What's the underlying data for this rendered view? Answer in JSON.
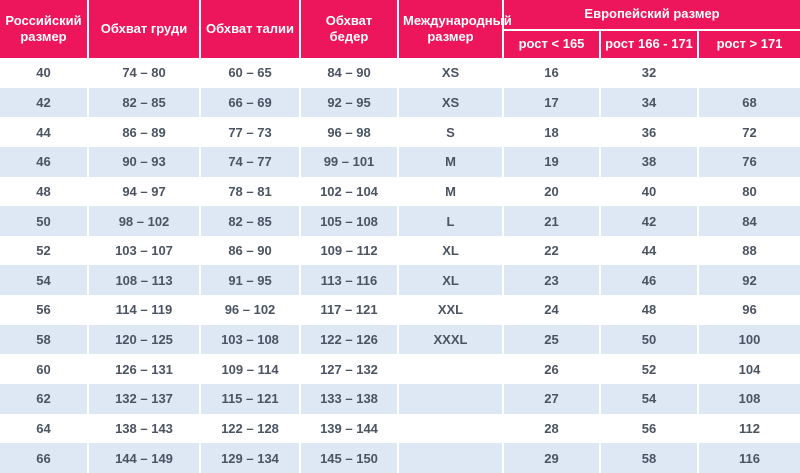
{
  "chart_data": {
    "type": "table",
    "header": {
      "russian_size": "Российский размер",
      "chest": "Обхват груди",
      "waist": "Обхват талии",
      "hips": "Обхват бедер",
      "international_size": "Международный размер",
      "european_size_group": "Европейский размер",
      "height_lt": "рост < 165",
      "height_mid": "рост 166 - 171",
      "height_gt": "рост > 171"
    },
    "rows": [
      [
        "40",
        "74 – 80",
        "60 – 65",
        "84 – 90",
        "XS",
        "16",
        "32",
        ""
      ],
      [
        "42",
        "82 – 85",
        "66 – 69",
        "92 – 95",
        "XS",
        "17",
        "34",
        "68"
      ],
      [
        "44",
        "86 – 89",
        "77 – 73",
        "96 – 98",
        "S",
        "18",
        "36",
        "72"
      ],
      [
        "46",
        "90 – 93",
        "74 – 77",
        "99 – 101",
        "M",
        "19",
        "38",
        "76"
      ],
      [
        "48",
        "94 – 97",
        "78 – 81",
        "102 – 104",
        "M",
        "20",
        "40",
        "80"
      ],
      [
        "50",
        "98 – 102",
        "82 – 85",
        "105 – 108",
        "L",
        "21",
        "42",
        "84"
      ],
      [
        "52",
        "103 – 107",
        "86 – 90",
        "109 – 112",
        "XL",
        "22",
        "44",
        "88"
      ],
      [
        "54",
        "108 – 113",
        "91 – 95",
        "113 – 116",
        "XL",
        "23",
        "46",
        "92"
      ],
      [
        "56",
        "114 – 119",
        "96 – 102",
        "117 – 121",
        "XXL",
        "24",
        "48",
        "96"
      ],
      [
        "58",
        "120 – 125",
        "103 – 108",
        "122 – 126",
        "XXXL",
        "25",
        "50",
        "100"
      ],
      [
        "60",
        "126 – 131",
        "109 – 114",
        "127 – 132",
        "",
        "26",
        "52",
        "104"
      ],
      [
        "62",
        "132 – 137",
        "115 – 121",
        "133 – 138",
        "",
        "27",
        "54",
        "108"
      ],
      [
        "64",
        "138 – 143",
        "122 – 128",
        "139 – 144",
        "",
        "28",
        "56",
        "112"
      ],
      [
        "66",
        "144 – 149",
        "129 – 134",
        "145 – 150",
        "",
        "29",
        "58",
        "116"
      ]
    ]
  },
  "colors": {
    "header_bg": "#ed155c",
    "header_text": "#ffffff",
    "row_alt_bg": "#dee8f4",
    "row_bg": "#ffffff",
    "cell_text": "#4a5462"
  }
}
